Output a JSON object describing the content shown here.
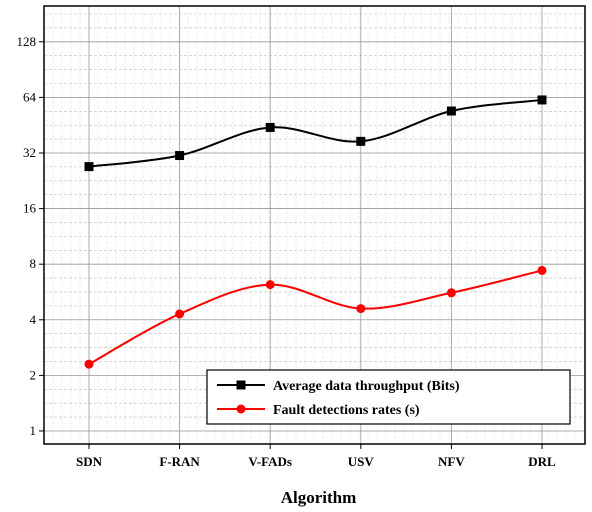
{
  "chart_data": {
    "type": "line",
    "title": "",
    "xlabel": "Algorithm",
    "ylabel": "",
    "categories": [
      "SDN",
      "F-RAN",
      "V-FADs",
      "USV",
      "NFV",
      "DRL"
    ],
    "y_scale": "log2",
    "ylim": [
      0.85,
      200
    ],
    "yticks": [
      1,
      2,
      4,
      8,
      16,
      32,
      64,
      128
    ],
    "grid": true,
    "legend_position": "bottom-right",
    "series": [
      {
        "name": "Average data throughput (Bits)",
        "color": "#000000",
        "marker": "square",
        "values": [
          27,
          31,
          44,
          37,
          54,
          62
        ]
      },
      {
        "name": "Fault detections rates (s)",
        "color": "#ff0000",
        "marker": "circle",
        "values": [
          2.3,
          4.3,
          6.2,
          4.6,
          5.6,
          7.4
        ]
      }
    ]
  }
}
